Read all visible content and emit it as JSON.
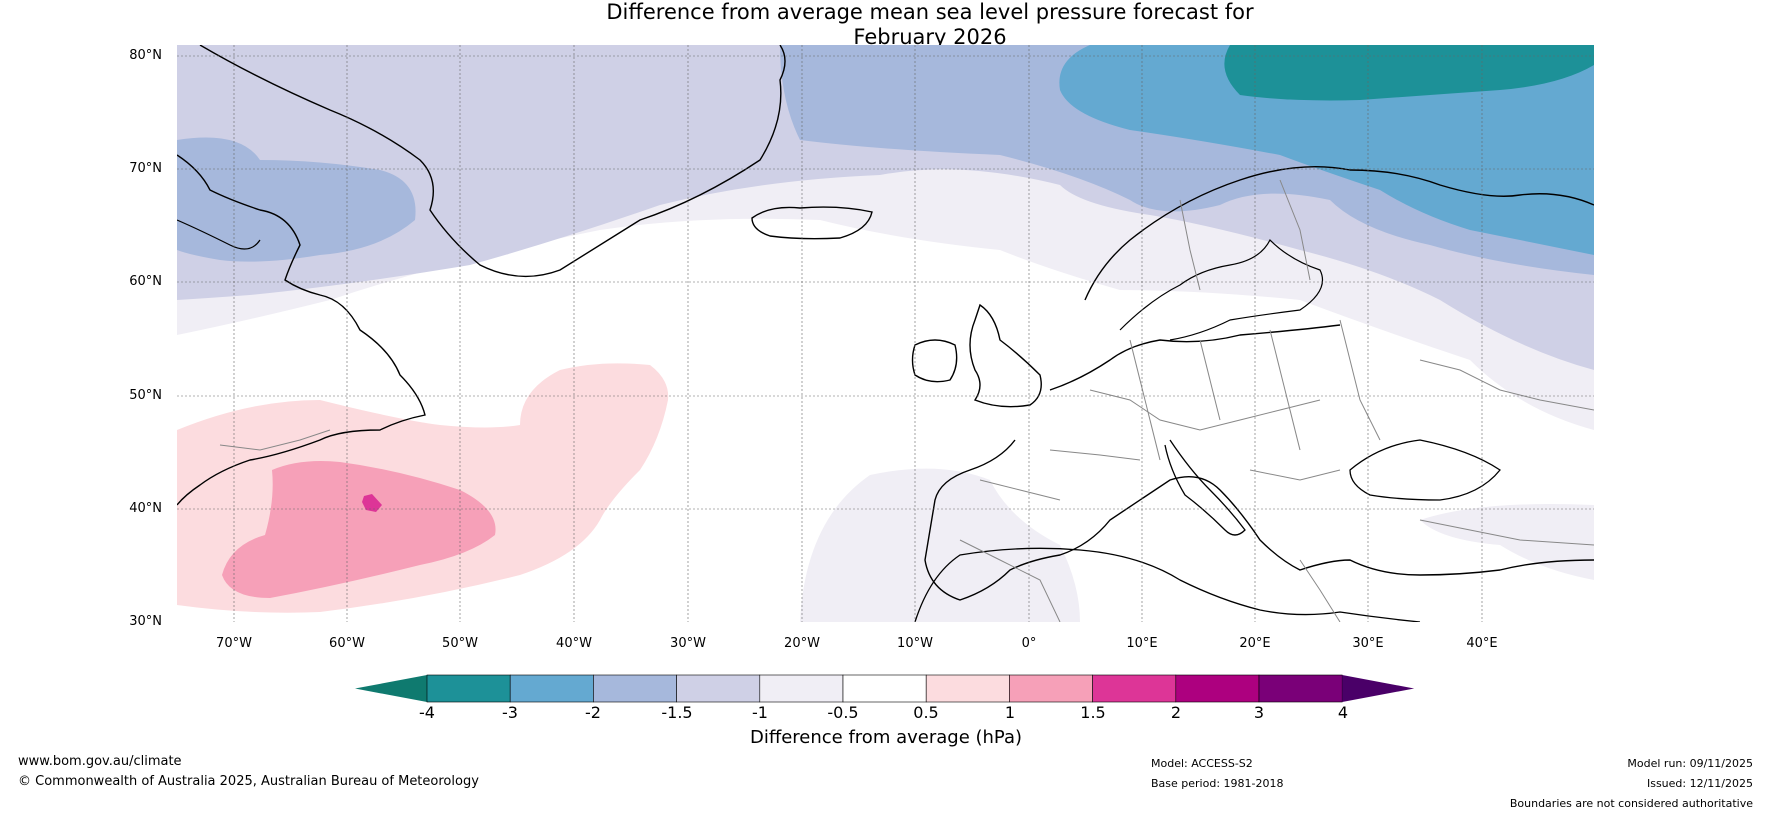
{
  "title": {
    "line1": "Difference from average mean sea level pressure forecast for",
    "line2": "February 2026"
  },
  "map": {
    "lat_labels": [
      "80°N",
      "70°N",
      "60°N",
      "50°N",
      "40°N",
      "30°N"
    ],
    "lon_labels": [
      "70°W",
      "60°W",
      "50°W",
      "40°W",
      "30°W",
      "20°W",
      "10°W",
      "0°",
      "10°E",
      "20°E",
      "30°E",
      "40°E"
    ],
    "land_color": "#ffffff",
    "coast_color": "#000000",
    "border_color": "#888888"
  },
  "colorbar": {
    "label": "Difference from average (hPa)",
    "ticks": [
      "-4",
      "-3",
      "-2",
      "-1.5",
      "-1",
      "-0.5",
      "0.5",
      "1",
      "1.5",
      "2",
      "3",
      "4"
    ],
    "colors": [
      "#0f7a6f",
      "#1d9198",
      "#64a9d1",
      "#a6b8dc",
      "#cfd0e6",
      "#f0eef5",
      "#ffffff",
      "#fcdcdf",
      "#f6a0b8",
      "#dd3597",
      "#ad007f",
      "#7a0078",
      "#4a0068"
    ]
  },
  "footer": {
    "url": "www.bom.gov.au/climate",
    "copyright": "© Commonwealth of Australia 2025, Australian Bureau of Meteorology",
    "model": "Model: ACCESS-S2",
    "base_period": "Base period: 1981-2018",
    "model_run": "Model run: 09/11/2025",
    "issued": "Issued: 12/11/2025",
    "disclaimer": "Boundaries are not considered authoritative"
  }
}
